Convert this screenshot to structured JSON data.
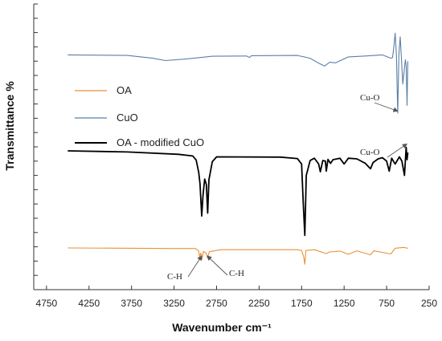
{
  "chart_data": {
    "type": "line",
    "title": "",
    "xlabel": "Wavenumber cm⁻¹",
    "ylabel": "Transmittance %",
    "xlim": [
      4900,
      250
    ],
    "x_reversed": true,
    "x_ticks": [
      4750,
      4250,
      3750,
      3250,
      2750,
      2250,
      1750,
      1250,
      750,
      250
    ],
    "x_tick_labels": [
      "4750",
      "4250",
      "3750",
      "3250",
      "2750",
      "2250",
      "1750",
      "1250",
      "750",
      "250"
    ],
    "ylim": [
      0,
      100
    ],
    "y_tick_labels_shown": false,
    "grid": false,
    "legend_position": "left",
    "series": [
      {
        "name": "OA",
        "color": "#e8913a",
        "points": [
          [
            4500,
            14.6
          ],
          [
            3300,
            14.4
          ],
          [
            3000,
            14.4
          ],
          [
            2960,
            13.5
          ],
          [
            2950,
            11.4
          ],
          [
            2935,
            12.8
          ],
          [
            2922,
            10.6
          ],
          [
            2905,
            13.4
          ],
          [
            2870,
            12.7
          ],
          [
            2855,
            11.1
          ],
          [
            2835,
            13.3
          ],
          [
            2700,
            14.0
          ],
          [
            1800,
            14.0
          ],
          [
            1750,
            13.7
          ],
          [
            1725,
            11.5
          ],
          [
            1712,
            8.9
          ],
          [
            1700,
            13.7
          ],
          [
            1600,
            14.0
          ],
          [
            1460,
            12.6
          ],
          [
            1420,
            13.2
          ],
          [
            1300,
            13.5
          ],
          [
            1200,
            12.4
          ],
          [
            1100,
            13.6
          ],
          [
            940,
            12.2
          ],
          [
            900,
            13.6
          ],
          [
            700,
            12.5
          ],
          [
            650,
            14.5
          ],
          [
            550,
            14.8
          ],
          [
            500,
            14.5
          ]
        ]
      },
      {
        "name": "CuO",
        "color": "#5b7fa6",
        "points": [
          [
            4500,
            82.2
          ],
          [
            3800,
            82.0
          ],
          [
            3500,
            81.0
          ],
          [
            3350,
            80.2
          ],
          [
            3100,
            80.8
          ],
          [
            2800,
            81.7
          ],
          [
            2400,
            81.8
          ],
          [
            2360,
            81.3
          ],
          [
            2340,
            81.9
          ],
          [
            1800,
            82.0
          ],
          [
            1650,
            81.0
          ],
          [
            1550,
            79.3
          ],
          [
            1480,
            78.3
          ],
          [
            1420,
            79.6
          ],
          [
            1350,
            79.4
          ],
          [
            1200,
            81.5
          ],
          [
            1000,
            81.8
          ],
          [
            800,
            82.2
          ],
          [
            700,
            81.0
          ],
          [
            680,
            81.3
          ],
          [
            665,
            85.0
          ],
          [
            650,
            89.8
          ],
          [
            635,
            82.0
          ],
          [
            620,
            61.8
          ],
          [
            605,
            82.5
          ],
          [
            590,
            88.5
          ],
          [
            575,
            80.5
          ],
          [
            560,
            72.0
          ],
          [
            545,
            76.2
          ],
          [
            530,
            80.5
          ],
          [
            520,
            78.5
          ],
          [
            510,
            64.5
          ],
          [
            500,
            80.0
          ]
        ]
      },
      {
        "name": "OA - modified CuO",
        "color": "#000000",
        "points": [
          [
            4500,
            48.6
          ],
          [
            3800,
            48.2
          ],
          [
            3200,
            47.4
          ],
          [
            3030,
            46.8
          ],
          [
            2990,
            45.4
          ],
          [
            2960,
            41.0
          ],
          [
            2945,
            37.0
          ],
          [
            2925,
            25.8
          ],
          [
            2910,
            33.0
          ],
          [
            2890,
            38.7
          ],
          [
            2870,
            36.8
          ],
          [
            2855,
            26.8
          ],
          [
            2840,
            38.5
          ],
          [
            2800,
            44.8
          ],
          [
            2750,
            46.5
          ],
          [
            2000,
            46.4
          ],
          [
            1800,
            45.9
          ],
          [
            1750,
            44.0
          ],
          [
            1730,
            30.0
          ],
          [
            1712,
            19.0
          ],
          [
            1695,
            40.0
          ],
          [
            1650,
            45.2
          ],
          [
            1600,
            46.0
          ],
          [
            1550,
            44.0
          ],
          [
            1530,
            41.3
          ],
          [
            1500,
            45.2
          ],
          [
            1470,
            45.0
          ],
          [
            1460,
            41.5
          ],
          [
            1440,
            45.6
          ],
          [
            1410,
            44.2
          ],
          [
            1380,
            45.5
          ],
          [
            1300,
            46.0
          ],
          [
            1250,
            44.0
          ],
          [
            1200,
            46.0
          ],
          [
            1100,
            45.8
          ],
          [
            1000,
            44.2
          ],
          [
            940,
            42.3
          ],
          [
            910,
            44.5
          ],
          [
            850,
            45.8
          ],
          [
            800,
            46.2
          ],
          [
            750,
            45.0
          ],
          [
            720,
            41.5
          ],
          [
            690,
            46.0
          ],
          [
            650,
            44.0
          ],
          [
            600,
            46.5
          ],
          [
            570,
            45.0
          ],
          [
            540,
            40.0
          ],
          [
            520,
            49.8
          ],
          [
            510,
            45.5
          ],
          [
            500,
            48.0
          ]
        ]
      }
    ],
    "annotations": [
      {
        "text": "Cu-O",
        "points_to_x": 620,
        "points_to_y": 62.5
      },
      {
        "text": "Cu-O",
        "points_to_x": 512,
        "points_to_y": 51.0
      },
      {
        "text": "C-H",
        "points_to_x": 2925,
        "points_to_y": 11.8
      },
      {
        "text": "C-H",
        "points_to_x": 2860,
        "points_to_y": 11.8
      }
    ]
  }
}
